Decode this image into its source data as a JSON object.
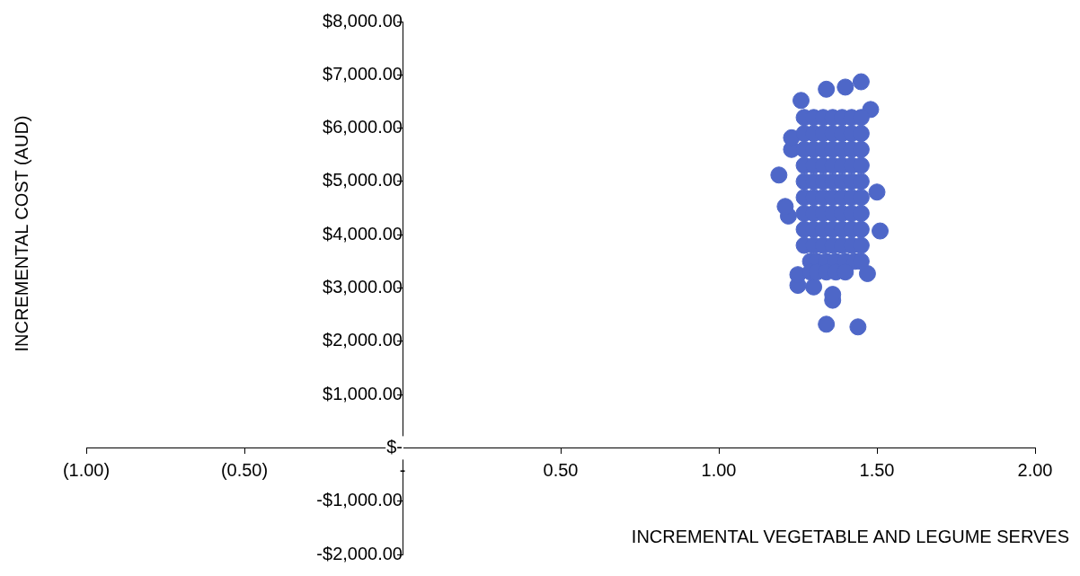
{
  "chart_data": {
    "type": "scatter",
    "xlabel": "INCREMENTAL VEGETABLE AND LEGUME SERVES",
    "ylabel": "INCREMENTAL COST (AUD)",
    "xlim": [
      -1,
      2
    ],
    "ylim": [
      -2000,
      8000
    ],
    "xticks": [
      {
        "value": -1,
        "label": "(1.00)"
      },
      {
        "value": -0.5,
        "label": "(0.50)"
      },
      {
        "value": 0,
        "label": "-"
      },
      {
        "value": 0.5,
        "label": "0.50"
      },
      {
        "value": 1,
        "label": "1.00"
      },
      {
        "value": 1.5,
        "label": "1.50"
      },
      {
        "value": 2,
        "label": "2.00"
      }
    ],
    "yticks": [
      {
        "value": 8000,
        "label": "$8,000.00"
      },
      {
        "value": 7000,
        "label": "$7,000.00"
      },
      {
        "value": 6000,
        "label": "$6,000.00"
      },
      {
        "value": 5000,
        "label": "$5,000.00"
      },
      {
        "value": 4000,
        "label": "$4,000.00"
      },
      {
        "value": 3000,
        "label": "$3,000.00"
      },
      {
        "value": 2000,
        "label": "$2,000.00"
      },
      {
        "value": 1000,
        "label": "$1,000.00"
      },
      {
        "value": 0,
        "label": "$-"
      },
      {
        "value": -1000,
        "label": "-$1,000.00"
      },
      {
        "value": -2000,
        "label": "-$2,000.00"
      }
    ],
    "grid": false,
    "legend": false,
    "marker": "circle",
    "color": "#4e67c8",
    "x": [
      1.45,
      1.34,
      1.4,
      1.26,
      1.19,
      1.23,
      1.51,
      1.5,
      1.34,
      1.44,
      1.36,
      1.36,
      1.25,
      1.25,
      1.3,
      1.48,
      1.47,
      1.22,
      1.21,
      1.23,
      1.27,
      1.3,
      1.33,
      1.36,
      1.39,
      1.42,
      1.45,
      1.27,
      1.3,
      1.33,
      1.36,
      1.39,
      1.42,
      1.45,
      1.27,
      1.3,
      1.33,
      1.36,
      1.39,
      1.42,
      1.45,
      1.27,
      1.3,
      1.33,
      1.36,
      1.39,
      1.42,
      1.45,
      1.27,
      1.3,
      1.33,
      1.36,
      1.39,
      1.42,
      1.45,
      1.27,
      1.3,
      1.33,
      1.36,
      1.39,
      1.42,
      1.45,
      1.27,
      1.3,
      1.33,
      1.36,
      1.39,
      1.42,
      1.45,
      1.27,
      1.3,
      1.33,
      1.36,
      1.39,
      1.42,
      1.45,
      1.27,
      1.3,
      1.33,
      1.36,
      1.39,
      1.42,
      1.45,
      1.29,
      1.31,
      1.34,
      1.37,
      1.4,
      1.43,
      1.45,
      1.29,
      1.31,
      1.34,
      1.37,
      1.4
    ],
    "values": [
      6870,
      6730,
      6770,
      6520,
      5120,
      5600,
      4070,
      4800,
      2320,
      2270,
      2770,
      2880,
      3050,
      3250,
      3020,
      6350,
      3270,
      4350,
      4530,
      5820,
      6200,
      6200,
      6200,
      6200,
      6200,
      6200,
      6200,
      5900,
      5900,
      5900,
      5900,
      5900,
      5900,
      5900,
      5600,
      5600,
      5600,
      5600,
      5600,
      5600,
      5600,
      5300,
      5300,
      5300,
      5300,
      5300,
      5300,
      5300,
      5000,
      5000,
      5000,
      5000,
      5000,
      5000,
      5000,
      4700,
      4700,
      4700,
      4700,
      4700,
      4700,
      4700,
      4400,
      4400,
      4400,
      4400,
      4400,
      4400,
      4400,
      4100,
      4100,
      4100,
      4100,
      4100,
      4100,
      4100,
      3800,
      3800,
      3800,
      3800,
      3800,
      3800,
      3800,
      3500,
      3500,
      3500,
      3500,
      3500,
      3500,
      3500,
      3300,
      3300,
      3300,
      3300,
      3300
    ]
  }
}
